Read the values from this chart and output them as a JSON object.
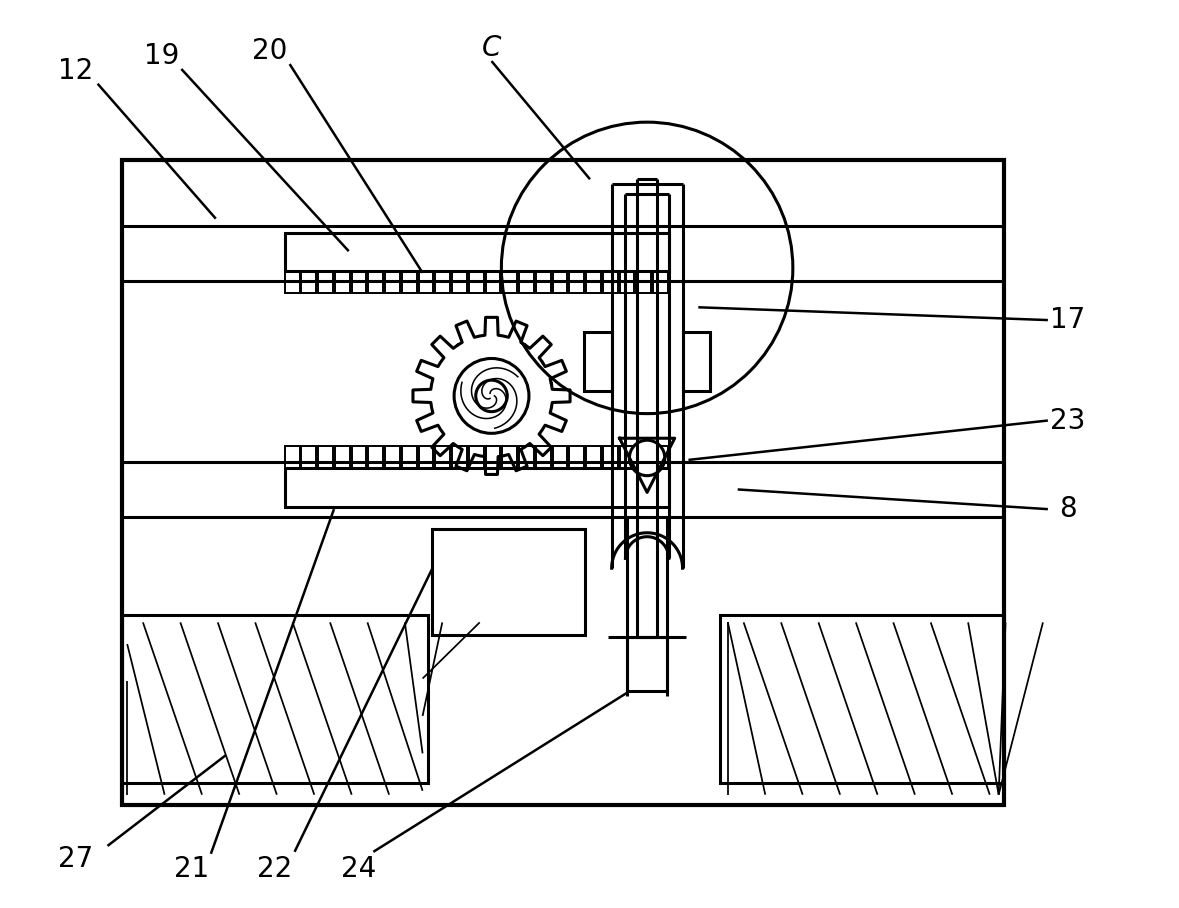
{
  "bg_color": "#ffffff",
  "line_color": "#000000",
  "lw_main": 2.2,
  "lw_thick": 3.0,
  "lw_thin": 1.4,
  "fig_width": 11.79,
  "fig_height": 9.08,
  "label_fontsize": 20
}
